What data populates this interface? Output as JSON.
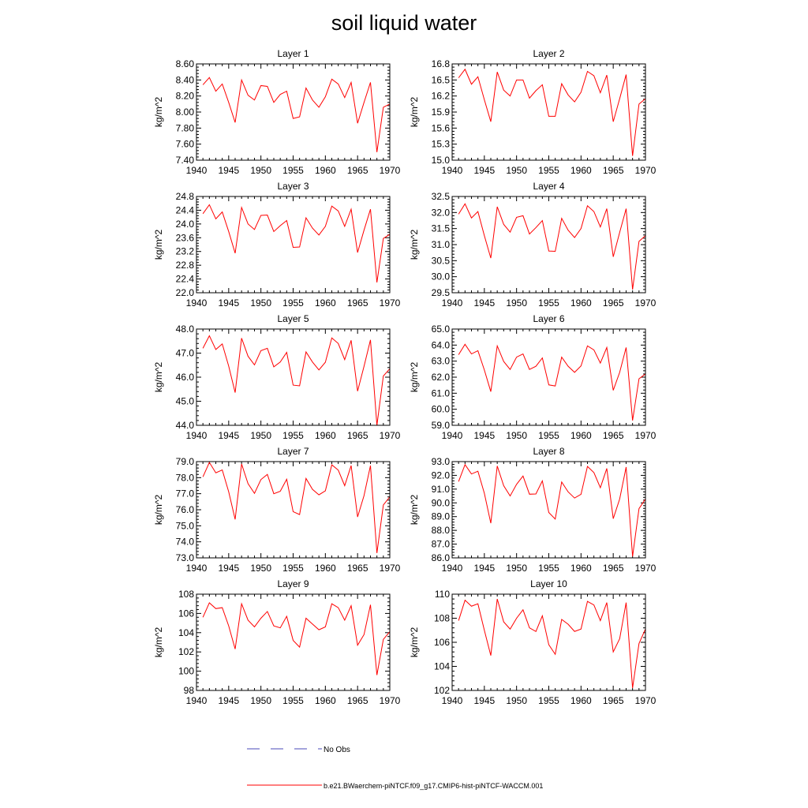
{
  "page": {
    "title": "soil liquid water"
  },
  "legend": {
    "obs_label": "No Obs",
    "obs_color": "#4a4ab8",
    "model_label": "b.e21.BWaerchem-piNTCF.f09_g17.CMIP6-hist-piNTCF-WACCM.001",
    "model_color": "#ff0000"
  },
  "chart_data": [
    {
      "type": "line",
      "title": "Layer 1",
      "ylabel": "kg/m^2",
      "xlim": [
        1940,
        1970
      ],
      "ylim": [
        7.4,
        8.6
      ],
      "xticks": [
        1940,
        1945,
        1950,
        1955,
        1960,
        1965,
        1970
      ],
      "yticks": [
        7.4,
        7.6,
        7.8,
        8.0,
        8.2,
        8.4,
        8.6
      ],
      "ydec": 2,
      "series": [
        {
          "x": [
            1941,
            1942,
            1943,
            1944,
            1945,
            1946,
            1947,
            1948,
            1949,
            1950,
            1951,
            1952,
            1953,
            1954,
            1955,
            1956,
            1957,
            1958,
            1959,
            1960,
            1961,
            1962,
            1963,
            1964,
            1965,
            1966,
            1967,
            1968,
            1969,
            1970
          ],
          "values": [
            8.34,
            8.43,
            8.26,
            8.35,
            8.12,
            7.87,
            8.4,
            8.21,
            8.15,
            8.33,
            8.32,
            8.12,
            8.22,
            8.26,
            7.92,
            7.94,
            8.3,
            8.15,
            8.06,
            8.19,
            8.41,
            8.35,
            8.18,
            8.37,
            7.86,
            8.12,
            8.37,
            7.5,
            8.06,
            8.1
          ]
        }
      ]
    },
    {
      "type": "line",
      "title": "Layer 2",
      "ylabel": "kg/m^2",
      "xlim": [
        1940,
        1970
      ],
      "ylim": [
        15.0,
        16.8
      ],
      "xticks": [
        1940,
        1945,
        1950,
        1955,
        1960,
        1965,
        1970
      ],
      "yticks": [
        15.0,
        15.3,
        15.6,
        15.9,
        16.2,
        16.5,
        16.8
      ],
      "ydec": 1,
      "series": [
        {
          "x": [
            1941,
            1942,
            1943,
            1944,
            1945,
            1946,
            1947,
            1948,
            1949,
            1950,
            1951,
            1952,
            1953,
            1954,
            1955,
            1956,
            1957,
            1958,
            1959,
            1960,
            1961,
            1962,
            1963,
            1964,
            1965,
            1966,
            1967,
            1968,
            1969,
            1970
          ],
          "values": [
            16.54,
            16.7,
            16.42,
            16.56,
            16.13,
            15.72,
            16.65,
            16.31,
            16.2,
            16.5,
            16.5,
            16.16,
            16.3,
            16.41,
            15.82,
            15.82,
            16.43,
            16.22,
            16.09,
            16.27,
            16.66,
            16.58,
            16.26,
            16.59,
            15.72,
            16.15,
            16.6,
            15.08,
            16.05,
            16.15
          ]
        }
      ]
    },
    {
      "type": "line",
      "title": "Layer 3",
      "ylabel": "kg/m^2",
      "xlim": [
        1940,
        1970
      ],
      "ylim": [
        22.0,
        24.8
      ],
      "xticks": [
        1940,
        1945,
        1950,
        1955,
        1960,
        1965,
        1970
      ],
      "yticks": [
        22.0,
        22.4,
        22.8,
        23.2,
        23.6,
        24.0,
        24.4,
        24.8
      ],
      "ydec": 1,
      "series": [
        {
          "x": [
            1941,
            1942,
            1943,
            1944,
            1945,
            1946,
            1947,
            1948,
            1949,
            1950,
            1951,
            1952,
            1953,
            1954,
            1955,
            1956,
            1957,
            1958,
            1959,
            1960,
            1961,
            1962,
            1963,
            1964,
            1965,
            1966,
            1967,
            1968,
            1969,
            1970
          ],
          "values": [
            24.3,
            24.56,
            24.15,
            24.35,
            23.78,
            23.15,
            24.48,
            24.0,
            23.84,
            24.25,
            24.26,
            23.78,
            23.95,
            24.1,
            23.32,
            23.33,
            24.18,
            23.88,
            23.68,
            23.93,
            24.52,
            24.38,
            23.93,
            24.43,
            23.17,
            23.82,
            24.43,
            22.3,
            23.58,
            23.7
          ]
        }
      ]
    },
    {
      "type": "line",
      "title": "Layer 4",
      "ylabel": "kg/m^2",
      "xlim": [
        1940,
        1970
      ],
      "ylim": [
        29.5,
        32.5
      ],
      "xticks": [
        1940,
        1945,
        1950,
        1955,
        1960,
        1965,
        1970
      ],
      "yticks": [
        29.5,
        30.0,
        30.5,
        31.0,
        31.5,
        32.0,
        32.5
      ],
      "ydec": 1,
      "series": [
        {
          "x": [
            1941,
            1942,
            1943,
            1944,
            1945,
            1946,
            1947,
            1948,
            1949,
            1950,
            1951,
            1952,
            1953,
            1954,
            1955,
            1956,
            1957,
            1958,
            1959,
            1960,
            1961,
            1962,
            1963,
            1964,
            1965,
            1966,
            1967,
            1968,
            1969,
            1970
          ],
          "values": [
            31.95,
            32.27,
            31.83,
            32.03,
            31.28,
            30.58,
            32.18,
            31.63,
            31.39,
            31.85,
            31.9,
            31.33,
            31.53,
            31.75,
            30.8,
            30.79,
            31.82,
            31.45,
            31.22,
            31.5,
            32.21,
            32.03,
            31.55,
            32.12,
            30.62,
            31.38,
            32.12,
            29.6,
            31.1,
            31.28
          ]
        }
      ]
    },
    {
      "type": "line",
      "title": "Layer 5",
      "ylabel": "kg/m^2",
      "xlim": [
        1940,
        1970
      ],
      "ylim": [
        44.0,
        48.0
      ],
      "xticks": [
        1940,
        1945,
        1950,
        1955,
        1960,
        1965,
        1970
      ],
      "yticks": [
        44.0,
        45.0,
        46.0,
        47.0,
        48.0
      ],
      "ydec": 1,
      "series": [
        {
          "x": [
            1941,
            1942,
            1943,
            1944,
            1945,
            1946,
            1947,
            1948,
            1949,
            1950,
            1951,
            1952,
            1953,
            1954,
            1955,
            1956,
            1957,
            1958,
            1959,
            1960,
            1961,
            1962,
            1963,
            1964,
            1965,
            1966,
            1967,
            1968,
            1969,
            1970
          ],
          "values": [
            47.2,
            47.72,
            47.15,
            47.38,
            46.46,
            45.36,
            47.62,
            46.87,
            46.51,
            47.1,
            47.2,
            46.43,
            46.63,
            47.03,
            45.67,
            45.64,
            47.05,
            46.63,
            46.3,
            46.62,
            47.63,
            47.4,
            46.73,
            47.53,
            45.42,
            46.45,
            47.55,
            44.0,
            46.05,
            46.35
          ]
        }
      ]
    },
    {
      "type": "line",
      "title": "Layer 6",
      "ylabel": "kg/m^2",
      "xlim": [
        1940,
        1970
      ],
      "ylim": [
        59.0,
        65.0
      ],
      "xticks": [
        1940,
        1945,
        1950,
        1955,
        1960,
        1965,
        1970
      ],
      "yticks": [
        59.0,
        60.0,
        61.0,
        62.0,
        63.0,
        64.0,
        65.0
      ],
      "ydec": 1,
      "series": [
        {
          "x": [
            1941,
            1942,
            1943,
            1944,
            1945,
            1946,
            1947,
            1948,
            1949,
            1950,
            1951,
            1952,
            1953,
            1954,
            1955,
            1956,
            1957,
            1958,
            1959,
            1960,
            1961,
            1962,
            1963,
            1964,
            1965,
            1966,
            1967,
            1968,
            1969,
            1970
          ],
          "values": [
            63.4,
            64.05,
            63.45,
            63.65,
            62.45,
            61.1,
            63.95,
            62.98,
            62.48,
            63.25,
            63.45,
            62.48,
            62.68,
            63.2,
            61.52,
            61.45,
            63.25,
            62.68,
            62.3,
            62.7,
            63.95,
            63.7,
            62.88,
            63.85,
            61.18,
            62.3,
            63.85,
            59.3,
            61.9,
            62.2
          ]
        }
      ]
    },
    {
      "type": "line",
      "title": "Layer 7",
      "ylabel": "kg/m^2",
      "xlim": [
        1940,
        1970
      ],
      "ylim": [
        73.0,
        79.0
      ],
      "xticks": [
        1940,
        1945,
        1950,
        1955,
        1960,
        1965,
        1970
      ],
      "yticks": [
        73.0,
        74.0,
        75.0,
        76.0,
        77.0,
        78.0,
        79.0
      ],
      "ydec": 1,
      "series": [
        {
          "x": [
            1941,
            1942,
            1943,
            1944,
            1945,
            1946,
            1947,
            1948,
            1949,
            1950,
            1951,
            1952,
            1953,
            1954,
            1955,
            1956,
            1957,
            1958,
            1959,
            1960,
            1961,
            1962,
            1963,
            1964,
            1965,
            1966,
            1967,
            1968,
            1969,
            1970
          ],
          "values": [
            78.05,
            78.95,
            78.3,
            78.48,
            77.12,
            75.4,
            78.85,
            77.63,
            77.02,
            77.88,
            78.2,
            77.0,
            77.15,
            77.9,
            75.88,
            75.7,
            77.95,
            77.27,
            76.93,
            77.18,
            78.8,
            78.47,
            77.5,
            78.75,
            75.55,
            76.88,
            78.75,
            73.3,
            76.3,
            76.8
          ]
        }
      ]
    },
    {
      "type": "line",
      "title": "Layer 8",
      "ylabel": "kg/m^2",
      "xlim": [
        1940,
        1970
      ],
      "ylim": [
        86.0,
        93.0
      ],
      "xticks": [
        1940,
        1945,
        1950,
        1955,
        1960,
        1965,
        1970
      ],
      "yticks": [
        86.0,
        87.0,
        88.0,
        89.0,
        90.0,
        91.0,
        92.0,
        93.0
      ],
      "ydec": 1,
      "series": [
        {
          "x": [
            1941,
            1942,
            1943,
            1944,
            1945,
            1946,
            1947,
            1948,
            1949,
            1950,
            1951,
            1952,
            1953,
            1954,
            1955,
            1956,
            1957,
            1958,
            1959,
            1960,
            1961,
            1962,
            1963,
            1964,
            1965,
            1966,
            1967,
            1968,
            1969,
            1970
          ],
          "values": [
            91.55,
            92.78,
            92.1,
            92.3,
            90.7,
            88.52,
            92.68,
            91.25,
            90.5,
            91.35,
            91.95,
            90.63,
            90.65,
            91.6,
            89.3,
            88.82,
            91.52,
            90.8,
            90.35,
            90.62,
            92.65,
            92.2,
            91.1,
            92.5,
            88.85,
            90.28,
            92.6,
            86.1,
            89.58,
            90.28
          ]
        }
      ]
    },
    {
      "type": "line",
      "title": "Layer 9",
      "ylabel": "kg/m^2",
      "xlim": [
        1940,
        1970
      ],
      "ylim": [
        98,
        108
      ],
      "xticks": [
        1940,
        1945,
        1950,
        1955,
        1960,
        1965,
        1970
      ],
      "yticks": [
        98,
        100,
        102,
        104,
        106,
        108
      ],
      "ydec": 0,
      "series": [
        {
          "x": [
            1941,
            1942,
            1943,
            1944,
            1945,
            1946,
            1947,
            1948,
            1949,
            1950,
            1951,
            1952,
            1953,
            1954,
            1955,
            1956,
            1957,
            1958,
            1959,
            1960,
            1961,
            1962,
            1963,
            1964,
            1965,
            1966,
            1967,
            1968,
            1969,
            1970
          ],
          "values": [
            105.6,
            107.1,
            106.5,
            106.6,
            104.7,
            102.3,
            107.0,
            105.3,
            104.6,
            105.5,
            106.2,
            104.7,
            104.5,
            105.7,
            103.2,
            102.5,
            105.5,
            104.9,
            104.3,
            104.6,
            107.0,
            106.6,
            105.3,
            106.8,
            102.7,
            103.8,
            106.9,
            99.6,
            103.3,
            104.1
          ]
        }
      ]
    },
    {
      "type": "line",
      "title": "Layer 10",
      "ylabel": "kg/m^2",
      "xlim": [
        1940,
        1970
      ],
      "ylim": [
        102,
        110
      ],
      "xticks": [
        1940,
        1945,
        1950,
        1955,
        1960,
        1965,
        1970
      ],
      "yticks": [
        102,
        104,
        106,
        108,
        110
      ],
      "ydec": 0,
      "series": [
        {
          "x": [
            1941,
            1942,
            1943,
            1944,
            1945,
            1946,
            1947,
            1948,
            1949,
            1950,
            1951,
            1952,
            1953,
            1954,
            1955,
            1956,
            1957,
            1958,
            1959,
            1960,
            1961,
            1962,
            1963,
            1964,
            1965,
            1966,
            1967,
            1968,
            1969,
            1970
          ],
          "values": [
            107.8,
            109.5,
            109.0,
            109.2,
            107.0,
            104.9,
            109.6,
            107.7,
            107.1,
            108.0,
            108.7,
            107.2,
            106.9,
            108.2,
            105.8,
            105.0,
            107.9,
            107.5,
            106.9,
            107.1,
            109.4,
            109.1,
            107.8,
            109.3,
            105.2,
            106.3,
            109.3,
            102.2,
            105.9,
            107.1
          ]
        }
      ]
    }
  ]
}
